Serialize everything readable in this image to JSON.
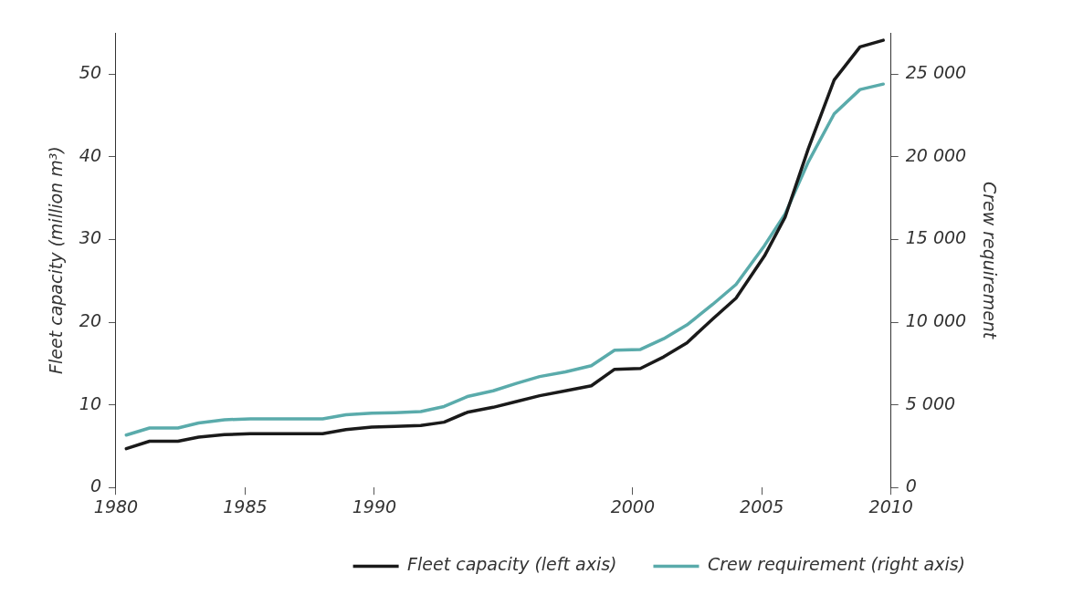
{
  "chart_data": {
    "type": "line",
    "xlim": [
      1980,
      2010
    ],
    "xticks": [
      1980,
      1985,
      1990,
      2000,
      2005,
      2010
    ],
    "ylabel": "Fleet capacity (million m³)",
    "y2label": "Crew requirement",
    "ylim": [
      0,
      55
    ],
    "yticks": [
      0,
      10,
      20,
      30,
      40,
      50
    ],
    "y2lim": [
      0,
      27500
    ],
    "y2ticks": [
      {
        "value": 0,
        "label": "0"
      },
      {
        "value": 5000,
        "label": "5 000"
      },
      {
        "value": 10000,
        "label": "10 000"
      },
      {
        "value": 15000,
        "label": "15 000"
      },
      {
        "value": 20000,
        "label": "20 000"
      },
      {
        "value": 25000,
        "label": "25 000"
      }
    ],
    "x": [
      1980.4,
      1981.3,
      1982.4,
      1983.2,
      1984.2,
      1985.2,
      1986.1,
      1987.1,
      1988.0,
      1988.9,
      1989.9,
      1990.8,
      1991.8,
      1992.7,
      1993.6,
      1994.6,
      1995.5,
      1996.4,
      1997.4,
      1998.4,
      1999.3,
      2000.3,
      2001.2,
      2002.1,
      2003.1,
      2004.0,
      2005.1,
      2005.9,
      2006.8,
      2007.8,
      2008.8,
      2009.7
    ],
    "series": [
      {
        "name": "Fleet capacity (left axis)",
        "color": "#1a1a1a",
        "values": [
          4.7,
          5.6,
          5.6,
          6.1,
          6.4,
          6.5,
          6.5,
          6.5,
          6.5,
          7.0,
          7.3,
          7.4,
          7.5,
          7.9,
          9.1,
          9.7,
          10.4,
          11.1,
          11.7,
          12.3,
          14.3,
          14.4,
          15.8,
          17.5,
          20.4,
          22.9,
          28,
          32.7,
          41,
          49.3,
          53.3,
          54.1
        ]
      },
      {
        "name": "Crew requirement (right axis)",
        "color": "#5aabab",
        "axis": "y2",
        "values": [
          3170,
          3600,
          3600,
          3900,
          4100,
          4150,
          4150,
          4150,
          4150,
          4400,
          4500,
          4530,
          4590,
          4900,
          5500,
          5850,
          6300,
          6710,
          6990,
          7370,
          8300,
          8350,
          9000,
          9830,
          11080,
          12280,
          14630,
          16540,
          19700,
          22600,
          24070,
          24400
        ]
      }
    ],
    "grid": false,
    "legend": "bottom",
    "marker": "none",
    "line_style": "solid"
  }
}
